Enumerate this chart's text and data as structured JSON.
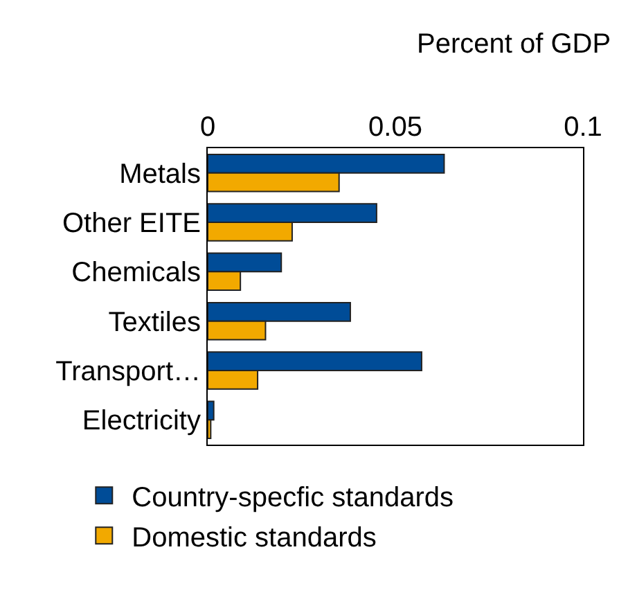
{
  "chart_data": {
    "type": "bar",
    "orientation": "horizontal",
    "xlabel": "Percent of GDP",
    "categories": [
      "Metals",
      "Other EITE",
      "Chemicals",
      "Textiles",
      "Transport…",
      "Electricity"
    ],
    "series": [
      {
        "name": "Country-specfic standards",
        "color": "#004c97",
        "values": [
          0.063,
          0.045,
          0.0196,
          0.038,
          0.057,
          0.0016
        ]
      },
      {
        "name": "Domestic standards",
        "color": "#f2a900",
        "values": [
          0.035,
          0.0225,
          0.0087,
          0.0154,
          0.0133,
          0.0008
        ]
      }
    ],
    "xlim": [
      0,
      0.1
    ],
    "xticks": [
      0,
      0.05,
      0.1
    ],
    "legend": "bottom"
  }
}
